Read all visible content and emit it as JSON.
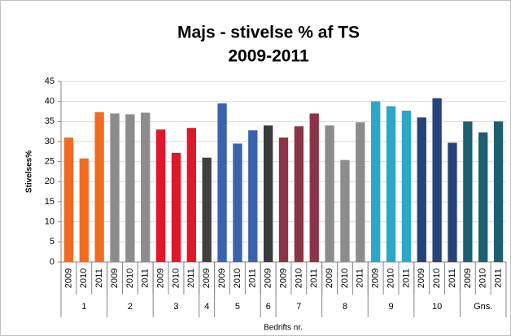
{
  "chart_data": {
    "type": "bar",
    "title": "Majs - stivelse % af TS",
    "subtitle": "2009-2011",
    "y_label": "Stivelses%",
    "x_label": "Bedrifts nr.",
    "ylim": [
      0,
      45
    ],
    "yticks": [
      0,
      5,
      10,
      15,
      20,
      25,
      30,
      35,
      40,
      45
    ],
    "grid": true,
    "groups": [
      {
        "name": "1",
        "color": "#f26b21",
        "categories": [
          "2009",
          "2010",
          "2011"
        ],
        "values": [
          31,
          25.8,
          37.3
        ]
      },
      {
        "name": "2",
        "color": "#8c8c8c",
        "categories": [
          "2009",
          "2010",
          "2011"
        ],
        "values": [
          37,
          36.8,
          37.2
        ]
      },
      {
        "name": "3",
        "color": "#e0172b",
        "categories": [
          "2009",
          "2010",
          "2011"
        ],
        "values": [
          33,
          27.2,
          33.4
        ]
      },
      {
        "name": "4",
        "color": "#404040",
        "categories": [
          "2009"
        ],
        "values": [
          26
        ]
      },
      {
        "name": "5",
        "color": "#3a63ae",
        "categories": [
          "2009",
          "2010",
          "2011"
        ],
        "values": [
          39.5,
          29.5,
          32.8
        ]
      },
      {
        "name": "6",
        "color": "#3b3b3b",
        "categories": [
          "2009"
        ],
        "values": [
          34
        ]
      },
      {
        "name": "7",
        "color": "#8b3348",
        "categories": [
          "2009",
          "2010",
          "2011"
        ],
        "values": [
          31,
          33.8,
          37
        ]
      },
      {
        "name": "8",
        "color": "#8c8c8c",
        "categories": [
          "2009",
          "2010",
          "2011"
        ],
        "values": [
          34,
          25.4,
          34.8
        ]
      },
      {
        "name": "9",
        "color": "#2ba7c8",
        "categories": [
          "2009",
          "2010",
          "2011"
        ],
        "values": [
          40,
          38.8,
          37.7
        ]
      },
      {
        "name": "10",
        "color": "#25437a",
        "categories": [
          "2009",
          "2010",
          "2011"
        ],
        "values": [
          36,
          40.8,
          29.7
        ]
      },
      {
        "name": "Gns.",
        "color": "#1c5f70",
        "categories": [
          "2009",
          "2010",
          "2011"
        ],
        "values": [
          35,
          32.3,
          35
        ]
      }
    ]
  }
}
